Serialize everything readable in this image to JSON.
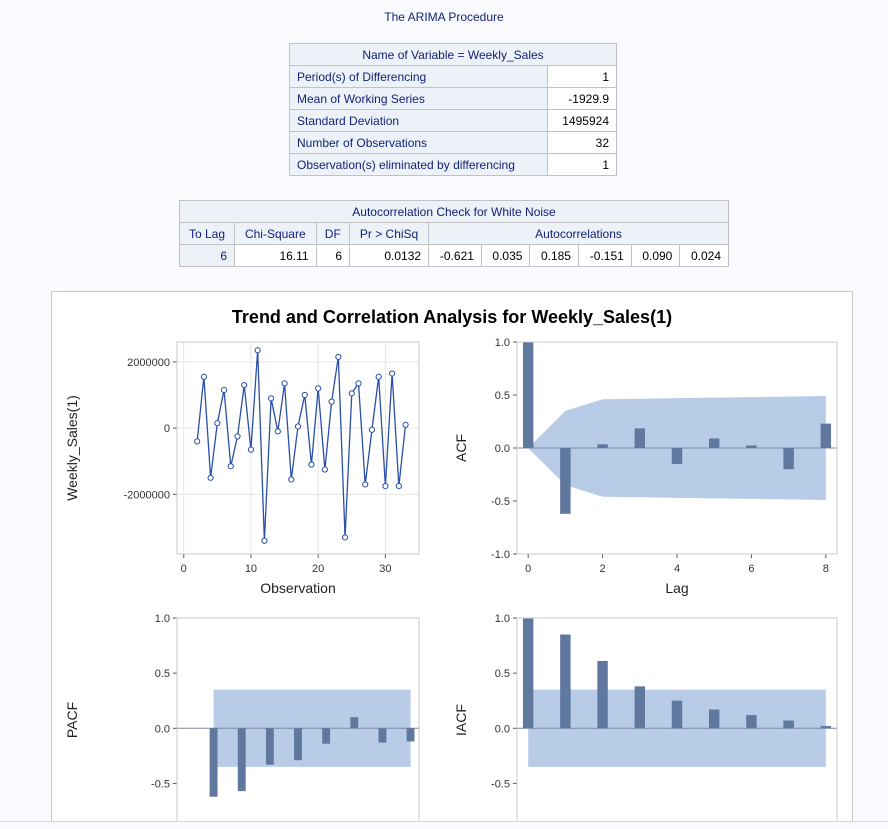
{
  "page": {
    "title": "The ARIMA Procedure"
  },
  "summary_table": {
    "header": "Name of Variable = Weekly_Sales",
    "rows": [
      {
        "label": "Period(s) of Differencing",
        "value": "1"
      },
      {
        "label": "Mean of Working Series",
        "value": "-1929.9"
      },
      {
        "label": "Standard Deviation",
        "value": "1495924"
      },
      {
        "label": "Number of Observations",
        "value": "32"
      },
      {
        "label": "Observation(s) eliminated by differencing",
        "value": "1"
      }
    ]
  },
  "whitenoise_table": {
    "title": "Autocorrelation Check for White Noise",
    "headers": {
      "lag": "To Lag",
      "chisq": "Chi-Square",
      "df": "DF",
      "prob": "Pr > ChiSq",
      "autocorr": "Autocorrelations"
    },
    "row": {
      "lag": "6",
      "chisq": "16.11",
      "df": "6",
      "prob": "0.0132",
      "autocorrelations": [
        "-0.621",
        "0.035",
        "0.185",
        "-0.151",
        "0.090",
        "0.024"
      ]
    }
  },
  "colors": {
    "line": "#2a4fa8",
    "bar": "#60779e",
    "band": "#b8cce8",
    "frame": "#c8c8c8"
  },
  "chart_title": "Trend and Correlation Analysis for Weekly_Sales(1)",
  "chart_data": [
    {
      "type": "line",
      "xlabel": "Observation",
      "ylabel": "Weekly_Sales(1)",
      "xlim": [
        -1,
        35
      ],
      "ylim": [
        -3800000,
        2600000
      ],
      "xticks": [
        0,
        10,
        20,
        30
      ],
      "yticks": [
        -2000000,
        0,
        2000000
      ],
      "grid": true,
      "x": [
        2,
        3,
        4,
        5,
        6,
        7,
        8,
        9,
        10,
        11,
        12,
        13,
        14,
        15,
        16,
        17,
        18,
        19,
        20,
        21,
        22,
        23,
        24,
        25,
        26,
        27,
        28,
        29,
        30,
        31,
        32,
        33
      ],
      "y": [
        -400000,
        1550000,
        -1500000,
        150000,
        1150000,
        -1150000,
        -250000,
        1300000,
        -650000,
        2350000,
        -3400000,
        900000,
        -100000,
        1350000,
        -1550000,
        50000,
        1000000,
        -1100000,
        1200000,
        -1250000,
        800000,
        2150000,
        -3300000,
        1050000,
        1350000,
        -1700000,
        -50000,
        1550000,
        -1750000,
        1650000,
        -1750000,
        100000
      ]
    },
    {
      "type": "bar",
      "ylabel": "ACF",
      "xlabel": "Lag",
      "xlim": [
        -0.3,
        8.3
      ],
      "ylim": [
        -1.0,
        1.0
      ],
      "xticks": [
        0,
        2,
        4,
        6,
        8
      ],
      "yticks": [
        -1.0,
        -0.5,
        0.0,
        0.5,
        1.0
      ],
      "x": [
        0,
        1,
        2,
        3,
        4,
        5,
        6,
        7,
        8
      ],
      "values": [
        1.0,
        -0.621,
        0.035,
        0.185,
        -0.151,
        0.09,
        0.024,
        -0.2,
        0.23
      ],
      "band_x": [
        0,
        1,
        2,
        3,
        4,
        5,
        6,
        7,
        8
      ],
      "band_upper": [
        0,
        0.35,
        0.46,
        0.465,
        0.47,
        0.475,
        0.48,
        0.485,
        0.49
      ]
    },
    {
      "type": "bar",
      "ylabel": "PACF",
      "xlabel": "",
      "xlim": [
        -0.3,
        8.3
      ],
      "ylim": [
        -0.85,
        1.0
      ],
      "yticks": [
        -0.5,
        0.0,
        0.5,
        1.0
      ],
      "x": [
        1,
        2,
        3,
        4,
        5,
        6,
        7,
        8
      ],
      "values": [
        -0.621,
        -0.57,
        -0.33,
        -0.29,
        -0.14,
        0.1,
        -0.13,
        -0.12
      ],
      "band": 0.35
    },
    {
      "type": "bar",
      "ylabel": "IACF",
      "xlabel": "",
      "xlim": [
        -0.3,
        8.3
      ],
      "ylim": [
        -0.85,
        1.0
      ],
      "yticks": [
        -0.5,
        0.0,
        0.5,
        1.0
      ],
      "x": [
        0,
        1,
        2,
        3,
        4,
        5,
        6,
        7,
        8
      ],
      "values": [
        1.0,
        0.85,
        0.61,
        0.38,
        0.25,
        0.17,
        0.12,
        0.07,
        0.02
      ],
      "band": 0.35
    }
  ]
}
